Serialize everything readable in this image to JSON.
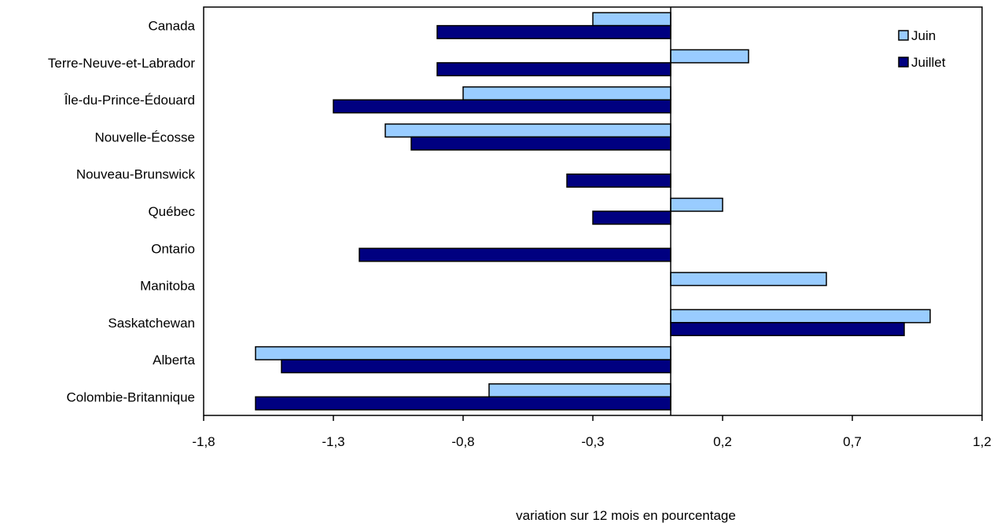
{
  "chart_data": {
    "type": "bar",
    "orientation": "horizontal",
    "categories": [
      "Canada",
      "Terre-Neuve-et-Labrador",
      "Île-du-Prince-Édouard",
      "Nouvelle-Écosse",
      "Nouveau-Brunswick",
      "Québec",
      "Ontario",
      "Manitoba",
      "Saskatchewan",
      "Alberta",
      "Colombie-Britannique"
    ],
    "series": [
      {
        "name": "Juin",
        "color": "#99ccff",
        "values": [
          -0.3,
          0.3,
          -0.8,
          -1.1,
          0.0,
          0.2,
          0.0,
          0.6,
          1.0,
          -1.6,
          -0.7
        ]
      },
      {
        "name": "Juillet",
        "color": "#000080",
        "values": [
          -0.9,
          -0.9,
          -1.3,
          -1.0,
          -0.4,
          -0.3,
          -1.2,
          0.0,
          0.9,
          -1.5,
          -1.6
        ]
      }
    ],
    "xlabel": "variation sur 12 mois en pourcentage",
    "ylabel": "",
    "xlim": [
      -1.8,
      1.2
    ],
    "ticks": [
      -1.8,
      -1.3,
      -0.8,
      -0.3,
      0.2,
      0.7,
      1.2
    ],
    "tick_labels": [
      "-1,8",
      "-1,3",
      "-0,8",
      "-0,3",
      "0,2",
      "0,7",
      "1,2"
    ],
    "legend_position": "top-right",
    "grid": false
  }
}
